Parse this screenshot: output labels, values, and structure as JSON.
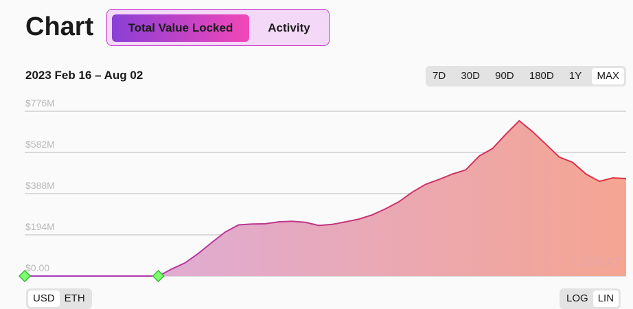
{
  "chart_data": {
    "type": "area",
    "title": "Chart",
    "subtitle": "2023 Feb 16 – Aug 02",
    "values": [
      0,
      0,
      0,
      0,
      0,
      0,
      0,
      0,
      0,
      0,
      0,
      33000000,
      62000000,
      107000000,
      158000000,
      207000000,
      241000000,
      245000000,
      246000000,
      255000000,
      258000000,
      253000000,
      238000000,
      243000000,
      255000000,
      268000000,
      288000000,
      317000000,
      350000000,
      395000000,
      432000000,
      455000000,
      480000000,
      500000000,
      565000000,
      600000000,
      668000000,
      731000000,
      680000000,
      620000000,
      560000000,
      535000000,
      480000000,
      446000000,
      462000000,
      459000000
    ],
    "ylim": [
      0,
      776000000
    ],
    "yticks": [
      {
        "value": 0,
        "label": "$0.00"
      },
      {
        "value": 194000000,
        "label": "$194M"
      },
      {
        "value": 388000000,
        "label": "$388M"
      },
      {
        "value": 582000000,
        "label": "$582M"
      },
      {
        "value": 776000000,
        "label": "$776M"
      }
    ],
    "grid": true,
    "line_colors": [
      "#a43cc4",
      "#e0303a"
    ],
    "fill_colors": [
      "#d9aee6",
      "#f5a592"
    ],
    "watermark": "L2BEAT"
  },
  "controls": {
    "tabs": [
      "Total Value Locked",
      "Activity"
    ],
    "periods": [
      "7D",
      "30D",
      "90D",
      "180D",
      "1Y",
      "MAX"
    ],
    "units": [
      "USD",
      "ETH"
    ],
    "scales": [
      "LOG",
      "LIN"
    ]
  }
}
